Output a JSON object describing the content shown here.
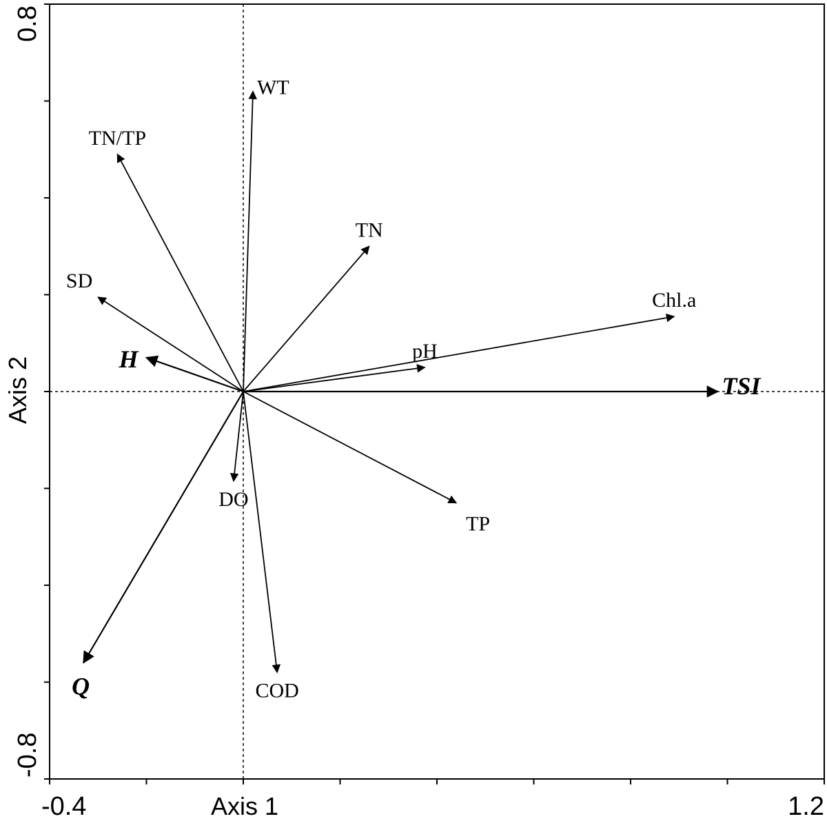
{
  "chart_data": {
    "type": "scatter",
    "subtype": "biplot",
    "xlabel": "Axis 1",
    "ylabel": "Axis 2",
    "xlim": [
      -0.4,
      1.2
    ],
    "ylim": [
      -0.8,
      0.8
    ],
    "x_tick_labels": [
      "-0.4",
      "1.2"
    ],
    "y_tick_labels": [
      "0.8",
      "-0.8"
    ],
    "x_minor_ticks": [
      -0.4,
      -0.2,
      0.0,
      0.2,
      0.4,
      0.6,
      0.8,
      1.0,
      1.2
    ],
    "y_minor_ticks": [
      -0.8,
      -0.6,
      -0.4,
      -0.2,
      0.0,
      0.2,
      0.4,
      0.6,
      0.8
    ],
    "grid": false,
    "reference_lines": {
      "x": 0,
      "y": 0
    },
    "vectors": [
      {
        "label": "WT",
        "x": 0.02,
        "y": 0.62,
        "emphasis": false,
        "label_pos": "right"
      },
      {
        "label": "TN/TP",
        "x": -0.26,
        "y": 0.49,
        "emphasis": false,
        "label_pos": "above"
      },
      {
        "label": "TN",
        "x": 0.26,
        "y": 0.3,
        "emphasis": false,
        "label_pos": "above"
      },
      {
        "label": "SD",
        "x": -0.3,
        "y": 0.195,
        "emphasis": false,
        "label_pos": "above-left"
      },
      {
        "label": "Chl.a",
        "x": 0.89,
        "y": 0.155,
        "emphasis": false,
        "label_pos": "above"
      },
      {
        "label": "pH",
        "x": 0.375,
        "y": 0.05,
        "emphasis": false,
        "label_pos": "above"
      },
      {
        "label": "H",
        "x": -0.2,
        "y": 0.07,
        "emphasis": true,
        "label_pos": "left"
      },
      {
        "label": "TSI",
        "x": 0.98,
        "y": 0.0,
        "emphasis": true,
        "label_pos": "right"
      },
      {
        "label": "DO",
        "x": -0.02,
        "y": -0.185,
        "emphasis": false,
        "label_pos": "below"
      },
      {
        "label": "TP",
        "x": 0.44,
        "y": -0.23,
        "emphasis": false,
        "label_pos": "below-right"
      },
      {
        "label": "COD",
        "x": 0.07,
        "y": -0.58,
        "emphasis": false,
        "label_pos": "below"
      },
      {
        "label": "Q",
        "x": -0.33,
        "y": -0.56,
        "emphasis": true,
        "label_pos": "below-left"
      }
    ]
  }
}
